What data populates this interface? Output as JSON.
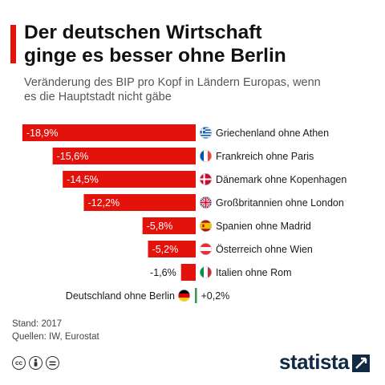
{
  "title_lines": [
    "Der deutschen Wirtschaft",
    "ginge es besser ohne Berlin"
  ],
  "subtitle_lines": [
    "Veränderung des BIP pro Kopf in Ländern Europas, wenn",
    "es die Hauptstadt nicht gäbe"
  ],
  "footer": {
    "stand": "Stand: 2017",
    "quellen": "Quellen: IW, Eurostat"
  },
  "license_icons": [
    "cc-icon",
    "attribution-icon",
    "no-derivatives-icon"
  ],
  "logo": {
    "text": "statista"
  },
  "colors": {
    "negative": "#e3120b",
    "positive": "#2e9e44",
    "accent": "#e3120b",
    "logo": "#102a43"
  },
  "chart_data": {
    "type": "bar",
    "orientation": "horizontal",
    "categories": [
      "Griechenland ohne Athen",
      "Frankreich ohne Paris",
      "Dänemark ohne Kopenhagen",
      "Großbritannien ohne London",
      "Spanien ohne Madrid",
      "Österreich ohne Wien",
      "Italien ohne Rom",
      "Deutschland ohne Berlin"
    ],
    "values": [
      -18.9,
      -15.6,
      -14.5,
      -12.2,
      -5.8,
      -5.2,
      -1.6,
      0.2
    ],
    "value_labels": [
      "-18,9%",
      "-15,6%",
      "-14,5%",
      "-12,2%",
      "-5,8%",
      "-5,2%",
      "-1,6%",
      "+0,2%"
    ],
    "flags": [
      "flag-greece-icon",
      "flag-france-icon",
      "flag-denmark-icon",
      "flag-uk-icon",
      "flag-spain-icon",
      "flag-austria-icon",
      "flag-italy-icon",
      "flag-germany-icon"
    ],
    "unit": "%",
    "xlim": [
      -19.5,
      0.5
    ],
    "grid": false
  }
}
